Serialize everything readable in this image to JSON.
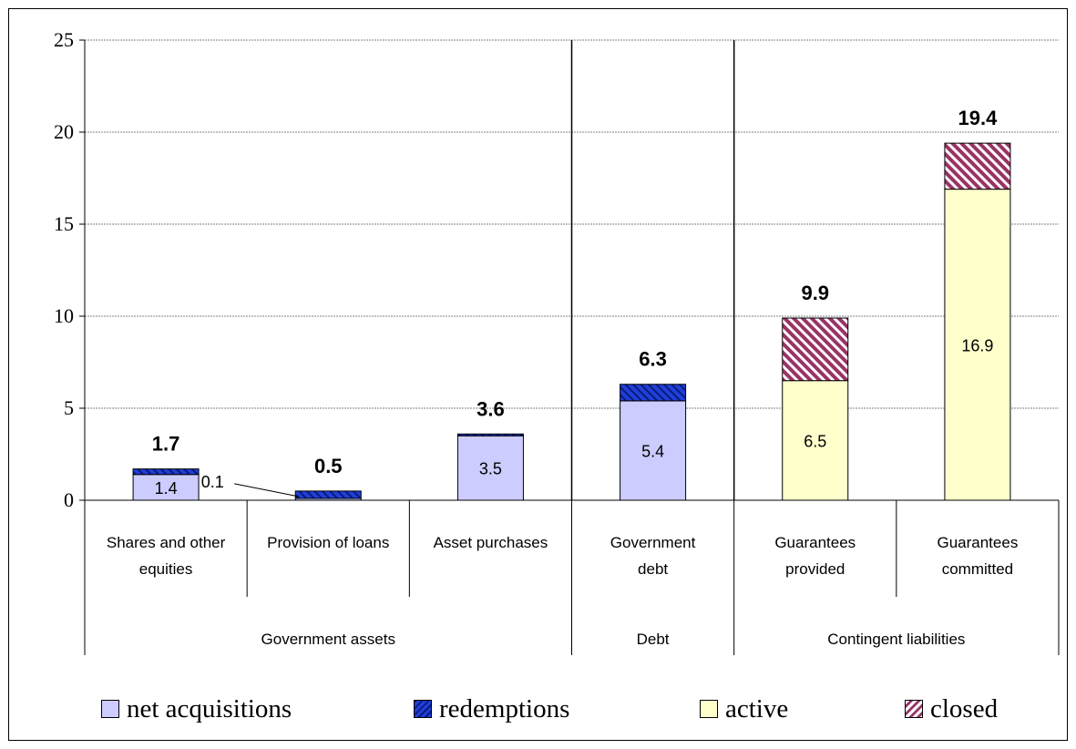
{
  "chart_data": {
    "type": "bar",
    "stacked": true,
    "ylim": [
      0,
      25
    ],
    "yticks": [
      0,
      5,
      10,
      15,
      20,
      25
    ],
    "grid": true,
    "legend_position": "bottom",
    "categories": [
      {
        "label_lines": [
          "Shares and other",
          "equities"
        ],
        "segments": [
          1.4,
          0.3
        ],
        "series": [
          "net acquisitions",
          "redemptions"
        ],
        "total_label": "1.7",
        "segment_labels": [
          "1.4",
          ""
        ]
      },
      {
        "label_lines": [
          "Provision of loans"
        ],
        "segments": [
          0.1,
          0.4
        ],
        "series": [
          "net acquisitions",
          "redemptions"
        ],
        "total_label": "0.5",
        "segment_labels": [
          "",
          ""
        ],
        "callout_label": "0.1"
      },
      {
        "label_lines": [
          "Asset purchases"
        ],
        "segments": [
          3.5,
          0.1
        ],
        "series": [
          "net acquisitions",
          "redemptions"
        ],
        "total_label": "3.6",
        "segment_labels": [
          "3.5",
          ""
        ]
      },
      {
        "label_lines": [
          "Government",
          "debt"
        ],
        "segments": [
          5.4,
          0.9
        ],
        "series": [
          "net acquisitions",
          "redemptions"
        ],
        "total_label": "6.3",
        "segment_labels": [
          "5.4",
          ""
        ]
      },
      {
        "label_lines": [
          "Guarantees",
          "provided"
        ],
        "segments": [
          6.5,
          3.4
        ],
        "series": [
          "active",
          "closed"
        ],
        "total_label": "9.9",
        "segment_labels": [
          "6.5",
          ""
        ]
      },
      {
        "label_lines": [
          "Guarantees",
          "committed"
        ],
        "segments": [
          16.9,
          2.5
        ],
        "series": [
          "active",
          "closed"
        ],
        "total_label": "19.4",
        "segment_labels": [
          "16.9",
          ""
        ]
      }
    ],
    "groups": [
      {
        "label": "Government assets",
        "span": [
          0,
          2
        ]
      },
      {
        "label": "Debt",
        "span": [
          3,
          3
        ]
      },
      {
        "label": "Contingent liabilities",
        "span": [
          4,
          5
        ]
      }
    ],
    "series": [
      {
        "name": "net acquisitions",
        "color": "#ccccff",
        "pattern": "solid"
      },
      {
        "name": "redemptions",
        "color": "#1f3fd9",
        "pattern": "diagonal-stripes"
      },
      {
        "name": "active",
        "color": "#ffffcc",
        "pattern": "solid"
      },
      {
        "name": "closed",
        "color": "#993366",
        "pattern": "diagonal-stripes"
      }
    ]
  },
  "legend": {
    "items": [
      "net acquisitions",
      "redemptions",
      "active",
      "closed"
    ]
  }
}
